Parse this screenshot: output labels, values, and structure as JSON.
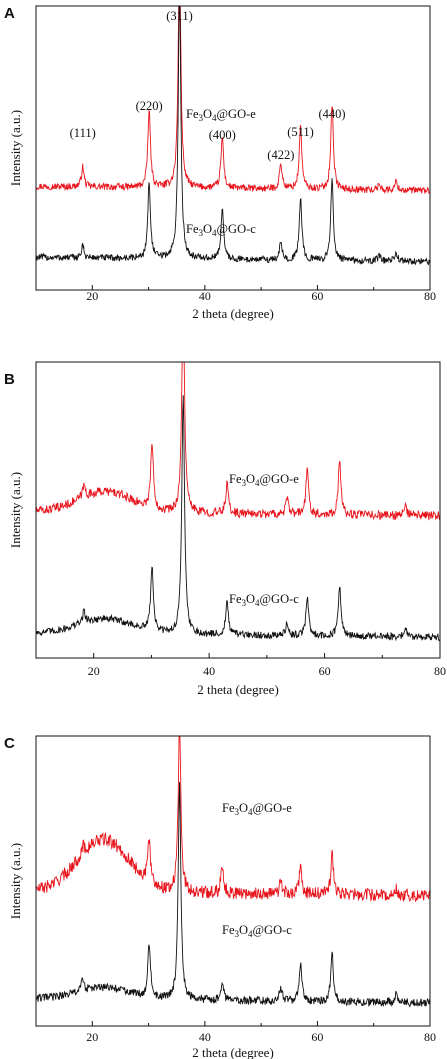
{
  "chart_data": [
    {
      "type": "line",
      "panel": "A",
      "xlabel": "2 theta (degree)",
      "ylabel": "Intensity (a.u.)",
      "xlim": [
        10,
        80
      ],
      "xticks": [
        "20",
        "40",
        "60",
        "80"
      ],
      "peak_labels": [
        {
          "text": "(111)",
          "x": 18.3
        },
        {
          "text": "(220)",
          "x": 30.1
        },
        {
          "text": "(311)",
          "x": 35.5
        },
        {
          "text": "(400)",
          "x": 43.1
        },
        {
          "text": "(422)",
          "x": 53.5
        },
        {
          "text": "(511)",
          "x": 57.0
        },
        {
          "text": "(440)",
          "x": 62.6
        }
      ],
      "series": [
        {
          "name": "Fe3O4@GO-e",
          "label": {
            "base": "Fe",
            "sub1": "3",
            "mid": "O",
            "sub2": "4",
            "rest": "@GO-e"
          },
          "color": "#e8141c",
          "peaks": [
            [
              18.3,
              0.07
            ],
            [
              30.1,
              0.27
            ],
            [
              35.5,
              0.82
            ],
            [
              43.1,
              0.18
            ],
            [
              53.5,
              0.09
            ],
            [
              57.0,
              0.22
            ],
            [
              62.6,
              0.3
            ],
            [
              71.0,
              0.02
            ],
            [
              74.0,
              0.03
            ]
          ],
          "baseline": 0.35,
          "noise": 0.012,
          "hump": 0.0
        },
        {
          "name": "Fe3O4@GO-c",
          "label": {
            "base": "Fe",
            "sub1": "3",
            "mid": "O",
            "sub2": "4",
            "rest": "@GO-c"
          },
          "color": "#111111",
          "peaks": [
            [
              18.3,
              0.04
            ],
            [
              30.1,
              0.27
            ],
            [
              35.5,
              0.94
            ],
            [
              43.1,
              0.18
            ],
            [
              53.5,
              0.06
            ],
            [
              57.0,
              0.22
            ],
            [
              62.6,
              0.28
            ],
            [
              71.0,
              0.02
            ],
            [
              74.0,
              0.03
            ]
          ],
          "baseline": 0.1,
          "noise": 0.012,
          "hump": 0.0
        }
      ]
    },
    {
      "type": "line",
      "panel": "B",
      "xlabel": "2 theta (degree)",
      "ylabel": "Intensity (a.u.)",
      "xlim": [
        10,
        80
      ],
      "xticks": [
        "20",
        "40",
        "60",
        "80"
      ],
      "series": [
        {
          "name": "Fe3O4@GO-e",
          "label": {
            "base": "Fe",
            "sub1": "3",
            "mid": "O",
            "sub2": "4",
            "rest": "@GO-e"
          },
          "color": "#e8141c",
          "peaks": [
            [
              18.3,
              0.04
            ],
            [
              30.1,
              0.22
            ],
            [
              35.5,
              0.72
            ],
            [
              43.1,
              0.1
            ],
            [
              53.5,
              0.05
            ],
            [
              57.0,
              0.15
            ],
            [
              62.6,
              0.18
            ],
            [
              74.0,
              0.03
            ]
          ],
          "baseline": 0.48,
          "noise": 0.015,
          "hump": 0.07
        },
        {
          "name": "Fe3O4@GO-c",
          "label": {
            "base": "Fe",
            "sub1": "3",
            "mid": "O",
            "sub2": "4",
            "rest": "@GO-c"
          },
          "color": "#111111",
          "peaks": [
            [
              18.3,
              0.04
            ],
            [
              30.1,
              0.22
            ],
            [
              35.5,
              0.82
            ],
            [
              43.1,
              0.11
            ],
            [
              53.5,
              0.04
            ],
            [
              57.0,
              0.13
            ],
            [
              62.6,
              0.17
            ],
            [
              74.0,
              0.03
            ]
          ],
          "baseline": 0.07,
          "noise": 0.012,
          "hump": 0.05
        }
      ]
    },
    {
      "type": "line",
      "panel": "C",
      "xlabel": "2 theta (degree)",
      "ylabel": "Intensity (a.u.)",
      "xlim": [
        10,
        80
      ],
      "xticks": [
        "20",
        "40",
        "60",
        "80"
      ],
      "series": [
        {
          "name": "Fe3O4@GO-e",
          "label": {
            "base": "Fe",
            "sub1": "3",
            "mid": "O",
            "sub2": "4",
            "rest": "@GO-e"
          },
          "color": "#e8141c",
          "peaks": [
            [
              18.3,
              0.03
            ],
            [
              30.1,
              0.14
            ],
            [
              35.5,
              0.58
            ],
            [
              43.1,
              0.1
            ],
            [
              53.5,
              0.04
            ],
            [
              57.0,
              0.09
            ],
            [
              62.6,
              0.14
            ],
            [
              74.0,
              0.02
            ]
          ],
          "baseline": 0.45,
          "noise": 0.022,
          "hump": 0.18
        },
        {
          "name": "Fe3O4@GO-c",
          "label": {
            "base": "Fe",
            "sub1": "3",
            "mid": "O",
            "sub2": "4",
            "rest": "@GO-c"
          },
          "color": "#111111",
          "peaks": [
            [
              18.3,
              0.04
            ],
            [
              30.1,
              0.19
            ],
            [
              35.5,
              0.75
            ],
            [
              43.1,
              0.07
            ],
            [
              53.5,
              0.05
            ],
            [
              57.0,
              0.13
            ],
            [
              62.6,
              0.17
            ],
            [
              74.0,
              0.03
            ]
          ],
          "baseline": 0.08,
          "noise": 0.014,
          "hump": 0.04
        }
      ]
    }
  ]
}
